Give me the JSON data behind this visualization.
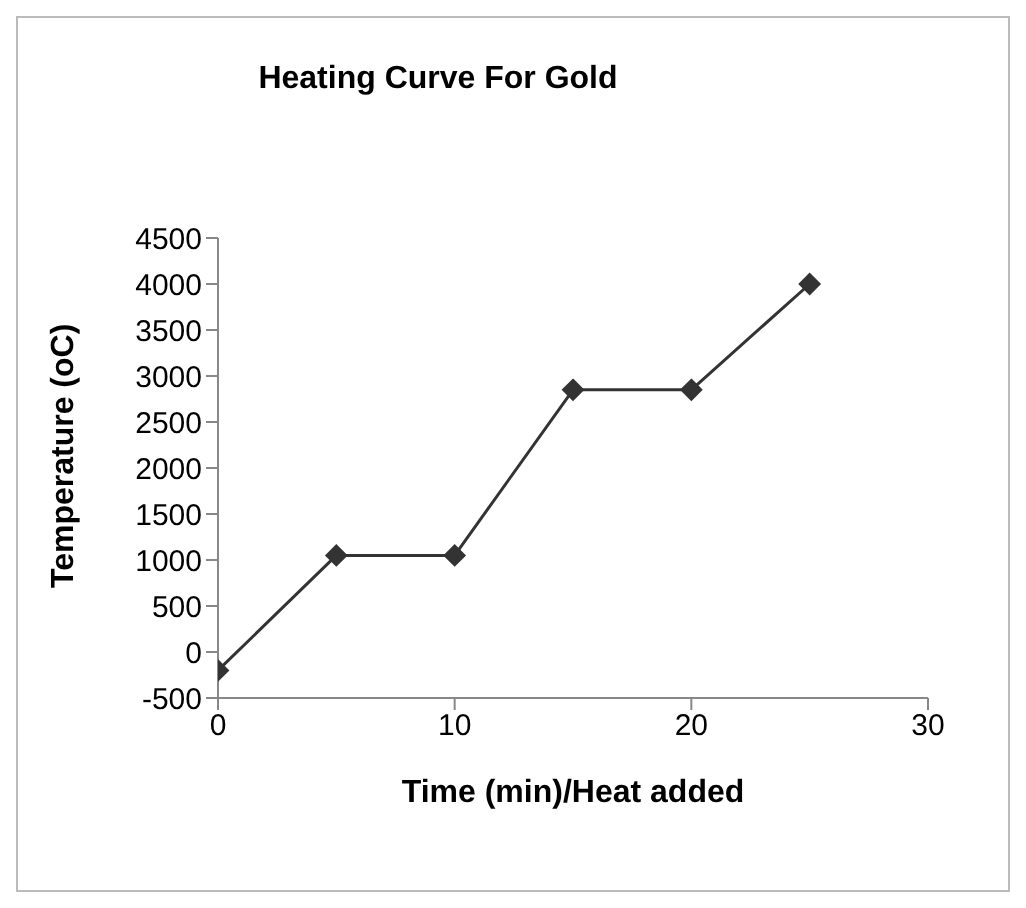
{
  "chart_data": {
    "type": "line",
    "title": "Heating Curve For Gold",
    "xlabel": "Time (min)/Heat added",
    "ylabel": "Temperature (oC)",
    "x": [
      0,
      5,
      10,
      15,
      20,
      25
    ],
    "series": [
      {
        "color": "#333333",
        "values": [
          -200,
          1050,
          1050,
          2850,
          2850,
          4000
        ]
      }
    ],
    "xlim": [
      0,
      30
    ],
    "xticks": [
      0,
      10,
      20,
      30
    ],
    "ylim": [
      -500,
      4500
    ],
    "yticks": [
      -500,
      0,
      500,
      1000,
      1500,
      2000,
      2500,
      3000,
      3500,
      4000,
      4500
    ],
    "marker": "diamond",
    "grid": false,
    "legend": false
  }
}
